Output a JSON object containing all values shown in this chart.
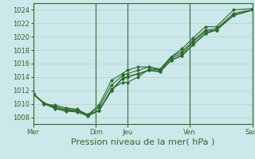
{
  "bg_color": "#cce8ea",
  "grid_color": "#aacccc",
  "line_color": "#2d6b2d",
  "marker_color": "#2d6b2d",
  "xlabel": "Pression niveau de la mer( hPa )",
  "xlabel_fontsize": 8,
  "ylabel_fontsize": 6,
  "xtick_fontsize": 6,
  "ylim": [
    1007,
    1025
  ],
  "yticks": [
    1008,
    1010,
    1012,
    1014,
    1016,
    1018,
    1020,
    1022,
    1024
  ],
  "xtick_labels": [
    "Mer",
    "Dim",
    "Jeu",
    "Ven",
    "Sam"
  ],
  "xtick_positions": [
    0,
    4,
    6,
    10,
    14
  ],
  "vlines": [
    0,
    4,
    6,
    10,
    14
  ],
  "xlim": [
    0,
    14
  ],
  "series": [
    [
      1011.5,
      1010.1,
      1009.4,
      1009.0,
      1009.0,
      1008.3,
      1009.0,
      1012.0,
      1013.8,
      1014.0,
      1014.5,
      1015.0,
      1014.8,
      1016.5,
      1017.2,
      1018.8,
      1020.5,
      1021.0,
      1023.2,
      1024.0
    ],
    [
      1011.5,
      1010.1,
      1009.6,
      1009.2,
      1009.1,
      1008.3,
      1009.5,
      1012.8,
      1014.2,
      1014.5,
      1015.0,
      1015.5,
      1015.0,
      1017.0,
      1017.8,
      1019.4,
      1021.0,
      1021.2,
      1023.5,
      1024.0
    ],
    [
      1011.5,
      1010.0,
      1009.8,
      1009.4,
      1009.2,
      1008.4,
      1009.8,
      1013.5,
      1014.5,
      1015.0,
      1015.5,
      1015.5,
      1015.2,
      1017.0,
      1018.2,
      1019.8,
      1021.5,
      1021.5,
      1024.0,
      1024.2
    ],
    [
      1011.5,
      1010.0,
      1009.3,
      1008.9,
      1008.8,
      1008.2,
      1009.0,
      1012.2,
      1013.2,
      1013.2,
      1014.0,
      1015.2,
      1015.0,
      1016.8,
      1017.5,
      1019.2,
      1020.8,
      1021.0,
      1023.2,
      1024.0
    ]
  ],
  "x_data": [
    0,
    0.7,
    1.4,
    2.1,
    2.8,
    3.5,
    4.2,
    5.0,
    5.7,
    6.0,
    6.7,
    7.4,
    8.1,
    8.8,
    9.5,
    10.2,
    11.0,
    11.7,
    12.8,
    14.0
  ]
}
